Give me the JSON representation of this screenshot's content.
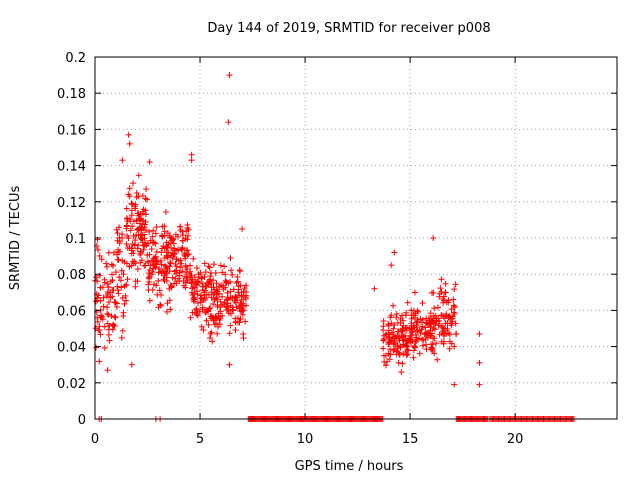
{
  "chart_data": {
    "type": "scatter",
    "title": "Day 144 of 2019, SRMTID for receiver p008",
    "xlabel": "GPS time / hours",
    "ylabel": "SRMTID / TECUs",
    "xlim": [
      0,
      24.85
    ],
    "ylim": [
      0,
      0.2
    ],
    "x_ticks": [
      0,
      5,
      10,
      15,
      20
    ],
    "y_ticks": [
      0,
      0.02,
      0.04,
      0.06,
      0.08,
      0.1,
      0.12,
      0.14,
      0.16,
      0.18,
      0.2
    ],
    "x_tick_labels": [
      "0",
      "5",
      "10",
      "15",
      "20"
    ],
    "y_tick_labels": [
      "0",
      "0.02",
      "0.04",
      "0.06",
      "0.08",
      "0.1",
      "0.12",
      "0.14",
      "0.16",
      "0.18",
      "0.2"
    ],
    "grid": true,
    "marker_color": "#ff0000",
    "series": [
      {
        "name": "SRMTID",
        "color": "#ff0000",
        "marker": "plus",
        "clusters": [
          {
            "x_range": [
              0.0,
              1.0
            ],
            "y_mean": 0.065,
            "y_spread": 0.03,
            "count": 80
          },
          {
            "x_range": [
              1.0,
              1.5
            ],
            "y_mean": 0.085,
            "y_spread": 0.035,
            "count": 40
          },
          {
            "x_range": [
              1.5,
              2.5
            ],
            "y_mean": 0.105,
            "y_spread": 0.03,
            "count": 110
          },
          {
            "x_range": [
              2.5,
              3.3
            ],
            "y_mean": 0.085,
            "y_spread": 0.03,
            "count": 70
          },
          {
            "x_range": [
              3.3,
              4.5
            ],
            "y_mean": 0.09,
            "y_spread": 0.025,
            "count": 120
          },
          {
            "x_range": [
              4.5,
              5.5
            ],
            "y_mean": 0.07,
            "y_spread": 0.025,
            "count": 90
          },
          {
            "x_range": [
              5.5,
              6.5
            ],
            "y_mean": 0.066,
            "y_spread": 0.02,
            "count": 90
          },
          {
            "x_range": [
              6.5,
              7.2
            ],
            "y_mean": 0.065,
            "y_spread": 0.02,
            "count": 60
          },
          {
            "x_range": [
              13.7,
              15.0
            ],
            "y_mean": 0.045,
            "y_spread": 0.018,
            "count": 110
          },
          {
            "x_range": [
              15.0,
              16.3
            ],
            "y_mean": 0.05,
            "y_spread": 0.018,
            "count": 110
          },
          {
            "x_range": [
              16.3,
              17.2
            ],
            "y_mean": 0.055,
            "y_spread": 0.02,
            "count": 70
          }
        ],
        "outliers": [
          {
            "x": 6.4,
            "y": 0.19
          },
          {
            "x": 6.35,
            "y": 0.164
          },
          {
            "x": 1.6,
            "y": 0.157
          },
          {
            "x": 1.65,
            "y": 0.152
          },
          {
            "x": 4.6,
            "y": 0.146
          },
          {
            "x": 4.6,
            "y": 0.143
          },
          {
            "x": 2.6,
            "y": 0.142
          },
          {
            "x": 1.3,
            "y": 0.143
          },
          {
            "x": 0.6,
            "y": 0.027
          },
          {
            "x": 1.75,
            "y": 0.03
          },
          {
            "x": 6.4,
            "y": 0.03
          },
          {
            "x": 13.3,
            "y": 0.072
          },
          {
            "x": 14.1,
            "y": 0.085
          },
          {
            "x": 14.25,
            "y": 0.092
          },
          {
            "x": 16.1,
            "y": 0.1
          },
          {
            "x": 17.1,
            "y": 0.04
          },
          {
            "x": 17.1,
            "y": 0.019
          },
          {
            "x": 18.3,
            "y": 0.047
          },
          {
            "x": 18.3,
            "y": 0.031
          },
          {
            "x": 18.3,
            "y": 0.019
          },
          {
            "x": 7.0,
            "y": 0.105
          }
        ],
        "zero_segments": [
          {
            "x_range": [
              0.2,
              0.3
            ],
            "count": 2
          },
          {
            "x_range": [
              2.9,
              3.1
            ],
            "count": 2
          },
          {
            "x_range": [
              7.3,
              13.7
            ],
            "count": 130
          },
          {
            "x_range": [
              17.2,
              18.7
            ],
            "count": 30
          },
          {
            "x_range": [
              18.8,
              22.8
            ],
            "count": 70
          }
        ]
      }
    ]
  }
}
